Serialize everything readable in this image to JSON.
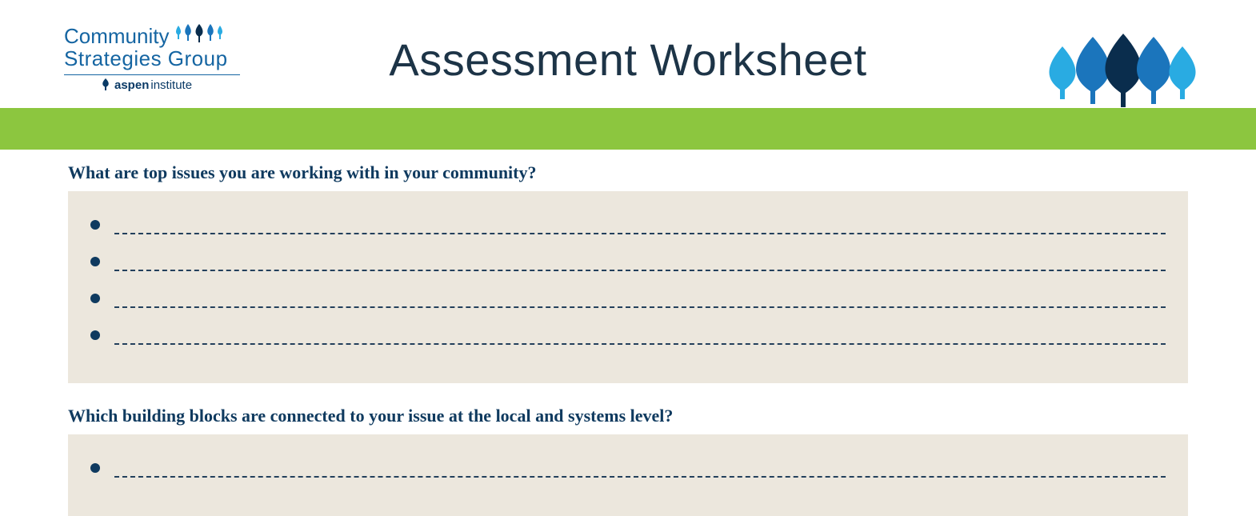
{
  "logo": {
    "line1": "Community",
    "line2": "Strategies Group",
    "sub_prefix": "aspen",
    "sub_suffix": "institute",
    "brand_color": "#1565a2",
    "sub_color": "#0a3a66"
  },
  "title": {
    "text": "Assessment Worksheet",
    "color": "#1d3447",
    "fontsize": 56
  },
  "trees": {
    "colors": [
      "#29abe2",
      "#1b75bc",
      "#0a2d4d",
      "#1b75bc",
      "#29abe2"
    ]
  },
  "green_bar": {
    "color": "#8cc63f"
  },
  "sections": [
    {
      "question": "What are top issues you are working with in your community?",
      "bullets": 4
    },
    {
      "question": "Which building blocks are connected to your issue at the local and systems level?",
      "bullets": 1
    }
  ],
  "style": {
    "question_color": "#0f3a5f",
    "answer_bg": "#ece7dd",
    "bullet_color": "#0f3a5f",
    "dash_color": "#23405c"
  }
}
